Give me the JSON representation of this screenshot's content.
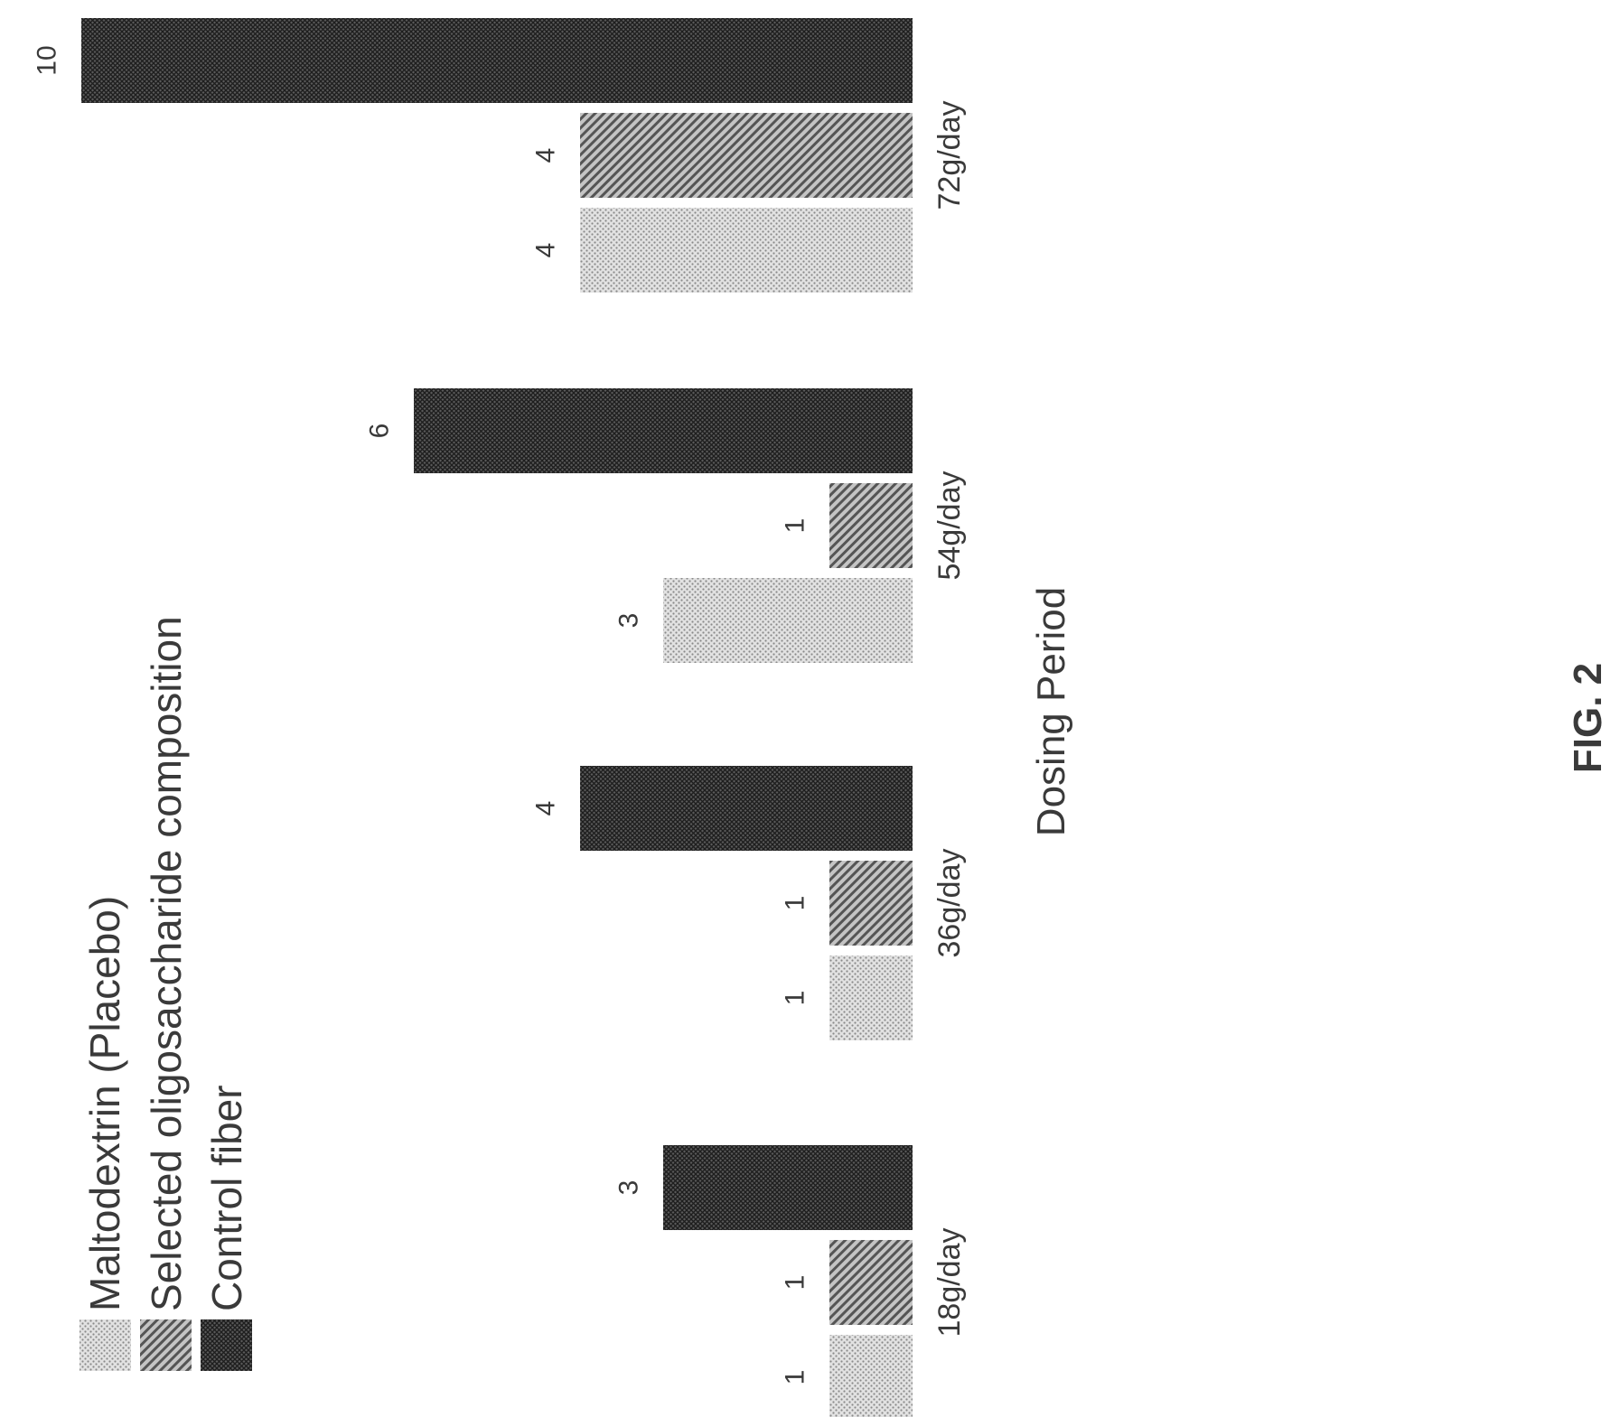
{
  "figure_label": "FIG. 2",
  "chart_data": {
    "type": "bar",
    "orientation": "horizontal",
    "categories": [
      "18g/day",
      "36g/day",
      "54g/day",
      "72g/day"
    ],
    "series": [
      {
        "name": "Maltodextrin (Placebo)",
        "values": [
          1,
          1,
          3,
          4
        ],
        "labels": [
          "1",
          "1",
          "3",
          "4"
        ],
        "pattern": "dots"
      },
      {
        "name": "Selected oligosaccharide composition",
        "values": [
          1,
          1,
          1,
          4
        ],
        "labels": [
          "1",
          "1",
          "1",
          "4"
        ],
        "pattern": "diagonal"
      },
      {
        "name": "Control fiber",
        "values": [
          3,
          4,
          6,
          10
        ],
        "labels": [
          "3",
          "4",
          "6",
          "10"
        ],
        "pattern": "crosshatch"
      }
    ],
    "title": "",
    "xlabel": "Dosing Period",
    "ylabel": "",
    "vlim": [
      0,
      10
    ],
    "grid": false,
    "legend": "top-left"
  }
}
